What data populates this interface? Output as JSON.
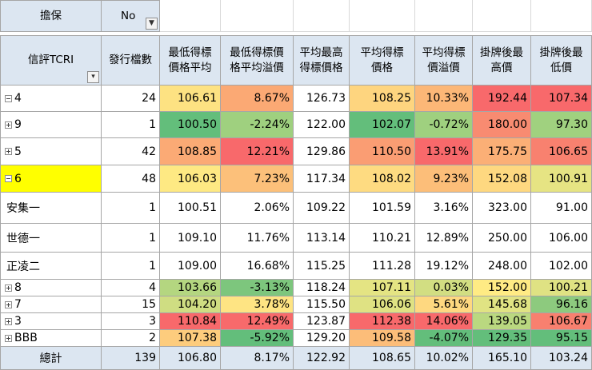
{
  "filter": {
    "label": "擔保",
    "value": "No",
    "icon": "filter-icon"
  },
  "headers": {
    "rating": "信評TCRI",
    "count": "發行檔數",
    "cols": [
      [
        "最低得標",
        "價格平均"
      ],
      [
        "最低得標價",
        "格平均溢價"
      ],
      [
        "平均最高",
        "得標價格"
      ],
      [
        "平均得標",
        "價格"
      ],
      [
        "平均得標",
        "價溢價"
      ],
      [
        "掛牌後最",
        "高價"
      ],
      [
        "掛牌後最",
        "低價"
      ]
    ]
  },
  "colors": {
    "header_bg": "#dce6f1",
    "selected_bg": "#ffff00",
    "scale_low": "#63be7b",
    "scale_mid": "#ffeb84",
    "scale_high": "#f8696b"
  },
  "rows": [
    {
      "label": "4",
      "expander": "minus",
      "count": "24",
      "values": [
        "106.61",
        "8.67%",
        "126.73",
        "108.25",
        "10.33%",
        "192.44",
        "107.34"
      ],
      "colors": [
        "#fde282",
        "#fba974",
        "#ffffff",
        "#fed57f",
        "#fcb777",
        "#f8696b",
        "#f8696b"
      ]
    },
    {
      "label": "9",
      "expander": "plus",
      "count": "1",
      "values": [
        "100.50",
        "-2.24%",
        "122.00",
        "102.07",
        "-0.72%",
        "180.00",
        "97.30"
      ],
      "colors": [
        "#63be7b",
        "#9fd07f",
        "#ffffff",
        "#63be7b",
        "#9fd07f",
        "#f88b71",
        "#a0d17f"
      ]
    },
    {
      "label": "5",
      "expander": "plus",
      "count": "42",
      "values": [
        "108.85",
        "12.21%",
        "129.86",
        "110.50",
        "13.91%",
        "175.75",
        "106.65"
      ],
      "colors": [
        "#fbaa75",
        "#f8696b",
        "#ffffff",
        "#fa9d73",
        "#f8696b",
        "#fbaf76",
        "#f8816f"
      ]
    },
    {
      "label": "6",
      "expander": "minus",
      "selected": true,
      "count": "48",
      "values": [
        "106.03",
        "7.23%",
        "117.34",
        "108.02",
        "9.23%",
        "152.08",
        "100.91"
      ],
      "colors": [
        "#fee983",
        "#fcc07a",
        "#ffffff",
        "#fedb81",
        "#fcbe79",
        "#fed880",
        "#e6e483"
      ]
    },
    {
      "label": "安集一",
      "count": "1",
      "values": [
        "100.51",
        "2.06%",
        "109.22",
        "101.59",
        "3.16%",
        "323.00",
        "91.00"
      ],
      "colors": [
        "#ffffff",
        "#ffffff",
        "#ffffff",
        "#ffffff",
        "#ffffff",
        "#ffffff",
        "#ffffff"
      ]
    },
    {
      "label": "世德一",
      "count": "1",
      "values": [
        "109.10",
        "11.76%",
        "113.14",
        "110.21",
        "12.89%",
        "250.00",
        "106.00"
      ],
      "colors": [
        "#ffffff",
        "#ffffff",
        "#ffffff",
        "#ffffff",
        "#ffffff",
        "#ffffff",
        "#ffffff"
      ]
    },
    {
      "label": "正凌二",
      "count": "1",
      "values": [
        "109.00",
        "16.68%",
        "115.25",
        "111.28",
        "19.12%",
        "248.00",
        "102.00"
      ],
      "colors": [
        "#ffffff",
        "#ffffff",
        "#ffffff",
        "#ffffff",
        "#ffffff",
        "#ffffff",
        "#ffffff"
      ]
    },
    {
      "label": "8",
      "expander": "plus",
      "count": "4",
      "values": [
        "103.66",
        "-3.13%",
        "118.24",
        "107.11",
        "0.03%",
        "152.00",
        "100.21"
      ],
      "colors": [
        "#b4d680",
        "#7dc67d",
        "#ffffff",
        "#e4e483",
        "#d2de82",
        "#ffeb84",
        "#dfe283"
      ]
    },
    {
      "label": "7",
      "expander": "plus",
      "count": "15",
      "values": [
        "104.20",
        "3.78%",
        "115.50",
        "106.06",
        "5.61%",
        "145.68",
        "96.16"
      ],
      "colors": [
        "#cfdd82",
        "#fee483",
        "#ffffff",
        "#dfe283",
        "#fed880",
        "#e0e383",
        "#8dca7e"
      ]
    },
    {
      "label": "3",
      "expander": "plus",
      "count": "3",
      "values": [
        "110.84",
        "12.49%",
        "123.87",
        "112.38",
        "14.06%",
        "139.05",
        "106.67"
      ],
      "colors": [
        "#f8696b",
        "#f86a6b",
        "#ffffff",
        "#f8696b",
        "#f8696b",
        "#bad880",
        "#f8806f"
      ]
    },
    {
      "label": "BBB",
      "expander": "plus",
      "count": "2",
      "values": [
        "107.38",
        "-5.92%",
        "129.20",
        "109.58",
        "-4.07%",
        "129.35",
        "95.15"
      ],
      "colors": [
        "#fdcc7d",
        "#63be7b",
        "#ffffff",
        "#fcbd79",
        "#63be7b",
        "#63be7b",
        "#63be7b"
      ]
    }
  ],
  "total": {
    "label": "總計",
    "count": "139",
    "values": [
      "106.80",
      "8.17%",
      "122.92",
      "108.65",
      "10.02%",
      "165.10",
      "103.24"
    ]
  }
}
